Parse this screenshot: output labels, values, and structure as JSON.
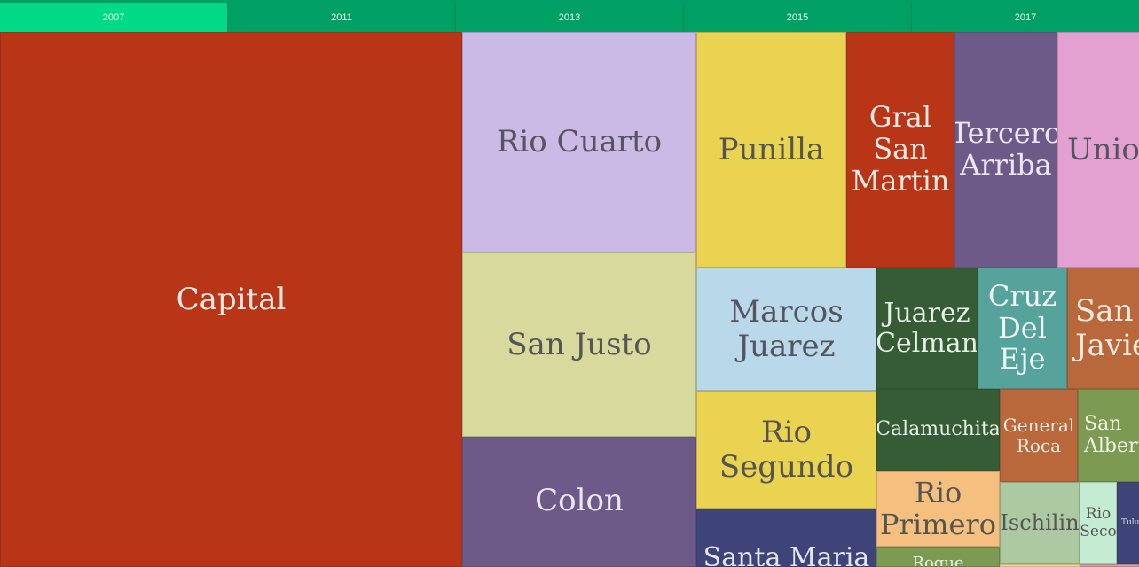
{
  "tabs": [
    {
      "label": "2007",
      "active": true
    },
    {
      "label": "2011",
      "active": false
    },
    {
      "label": "2013",
      "active": false
    },
    {
      "label": "2015",
      "active": false
    },
    {
      "label": "2017",
      "active": false
    }
  ],
  "chart_data": {
    "type": "treemap",
    "selected_year": "2007",
    "nodes": [
      {
        "label": "Capital",
        "color": "#b83518",
        "text_color": "#f2e8e2"
      },
      {
        "label": "Rio Cuarto",
        "color": "#cbb9e6",
        "text_color": "#555560"
      },
      {
        "label": "San Justo",
        "color": "#d7d99d",
        "text_color": "#555555"
      },
      {
        "label": "Colon",
        "color": "#6e5a88",
        "text_color": "#ece6f2"
      },
      {
        "label": "Punilla",
        "color": "#ebd352",
        "text_color": "#555550"
      },
      {
        "label": "Gral San Martin",
        "color": "#b83518",
        "text_color": "#f2e8e2"
      },
      {
        "label": "Tercero Arriba",
        "color": "#6e5a88",
        "text_color": "#ece6f2"
      },
      {
        "label": "Union",
        "color": "#e3a1d2",
        "text_color": "#555560"
      },
      {
        "label": "Marcos Juarez",
        "color": "#b9d9ea",
        "text_color": "#555560"
      },
      {
        "label": "Juarez Celman",
        "color": "#355c35",
        "text_color": "#e6efe6"
      },
      {
        "label": "Cruz Del Eje",
        "color": "#56a39c",
        "text_color": "#eef7f6"
      },
      {
        "label": "San Javier",
        "color": "#b8683a",
        "text_color": "#f4e9e2"
      },
      {
        "label": "Rio Segundo",
        "color": "#ebd352",
        "text_color": "#555550"
      },
      {
        "label": "Calamuchita",
        "color": "#355c35",
        "text_color": "#e6efe6"
      },
      {
        "label": "General Roca",
        "color": "#b8683a",
        "text_color": "#f4e9e2"
      },
      {
        "label": "San Alberto",
        "color": "#7c9a52",
        "text_color": "#eef3e6"
      },
      {
        "label": "Rio Primero",
        "color": "#f5bf80",
        "text_color": "#555550"
      },
      {
        "label": "Ischilin",
        "color": "#adc9a1",
        "text_color": "#555555"
      },
      {
        "label": "Rio Seco",
        "color": "#c4ecd3",
        "text_color": "#555555"
      },
      {
        "label": "Tulumba",
        "color": "#3f4478",
        "text_color": "#dfe2f2"
      },
      {
        "label": "Santa Maria",
        "color": "#3f4478",
        "text_color": "#e3e6f4"
      },
      {
        "label": "Roque",
        "color": "#7c9a52",
        "text_color": "#eef3e6"
      },
      {
        "label": "",
        "color": "#f1e18a",
        "text_color": "#555550"
      },
      {
        "label": "",
        "color": "#d9a3a3",
        "text_color": "#555550"
      }
    ]
  }
}
